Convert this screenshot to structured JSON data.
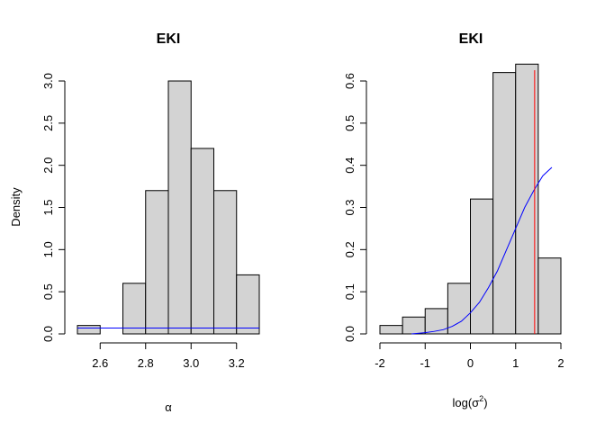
{
  "chart_data": [
    {
      "type": "histogram",
      "title": "EKI",
      "xlabel": "α",
      "ylabel": "Density",
      "xlim": [
        2.5,
        3.3
      ],
      "ylim": [
        0,
        3.0
      ],
      "xticks": [
        2.6,
        2.8,
        3.0,
        3.2
      ],
      "xtick_labels": [
        "2.6",
        "2.8",
        "3.0",
        "3.2"
      ],
      "yticks": [
        0,
        0.5,
        1.0,
        1.5,
        2.0,
        2.5,
        3.0
      ],
      "ytick_labels": [
        "0.0",
        "0.5",
        "1.0",
        "1.5",
        "2.0",
        "2.5",
        "3.0"
      ],
      "bins": [
        {
          "x0": 2.5,
          "x1": 2.6,
          "density": 0.1
        },
        {
          "x0": 2.6,
          "x1": 2.7,
          "density": 0.0
        },
        {
          "x0": 2.7,
          "x1": 2.8,
          "density": 0.6
        },
        {
          "x0": 2.8,
          "x1": 2.9,
          "density": 1.7
        },
        {
          "x0": 2.9,
          "x1": 3.0,
          "density": 3.0
        },
        {
          "x0": 3.0,
          "x1": 3.1,
          "density": 2.2
        },
        {
          "x0": 3.1,
          "x1": 3.2,
          "density": 1.7
        },
        {
          "x0": 3.2,
          "x1": 3.3,
          "density": 0.7
        }
      ],
      "lines": [
        {
          "color": "#0000ff",
          "x": [
            2.5,
            3.3
          ],
          "y": [
            0.07,
            0.07
          ]
        }
      ],
      "grid": false
    },
    {
      "type": "histogram",
      "title": "EKI",
      "xlabel": "log(σ²)",
      "xlabel_base": "log(σ",
      "xlabel_sup": "2",
      "xlabel_tail": ")",
      "ylabel": "",
      "xlim": [
        -2,
        2
      ],
      "ylim": [
        0,
        0.6
      ],
      "xticks": [
        -2,
        -1,
        0,
        1,
        2
      ],
      "xtick_labels": [
        "-2",
        "-1",
        "0",
        "1",
        "2"
      ],
      "yticks": [
        0,
        0.1,
        0.2,
        0.3,
        0.4,
        0.5,
        0.6
      ],
      "ytick_labels": [
        "0.0",
        "0.1",
        "0.2",
        "0.3",
        "0.4",
        "0.5",
        "0.6"
      ],
      "bins": [
        {
          "x0": -2.0,
          "x1": -1.5,
          "density": 0.02
        },
        {
          "x0": -1.5,
          "x1": -1.0,
          "density": 0.04
        },
        {
          "x0": -1.0,
          "x1": -0.5,
          "density": 0.06
        },
        {
          "x0": -0.5,
          "x1": 0.0,
          "density": 0.12
        },
        {
          "x0": 0.0,
          "x1": 0.5,
          "density": 0.32
        },
        {
          "x0": 0.5,
          "x1": 1.0,
          "density": 0.62
        },
        {
          "x0": 1.0,
          "x1": 1.5,
          "density": 0.64
        },
        {
          "x0": 1.5,
          "x1": 2.0,
          "density": 0.18
        }
      ],
      "lines": [
        {
          "color": "#0000ff",
          "x": [
            -1.3,
            -1.0,
            -0.8,
            -0.6,
            -0.4,
            -0.2,
            0.0,
            0.2,
            0.4,
            0.6,
            0.8,
            1.0,
            1.2,
            1.4,
            1.6,
            1.8
          ],
          "y": [
            0.0,
            0.003,
            0.006,
            0.01,
            0.018,
            0.03,
            0.05,
            0.075,
            0.11,
            0.15,
            0.2,
            0.25,
            0.3,
            0.34,
            0.375,
            0.395
          ]
        }
      ],
      "vlines": [
        {
          "color": "#ff0000",
          "x": 1.42
        }
      ],
      "grid": false
    }
  ]
}
